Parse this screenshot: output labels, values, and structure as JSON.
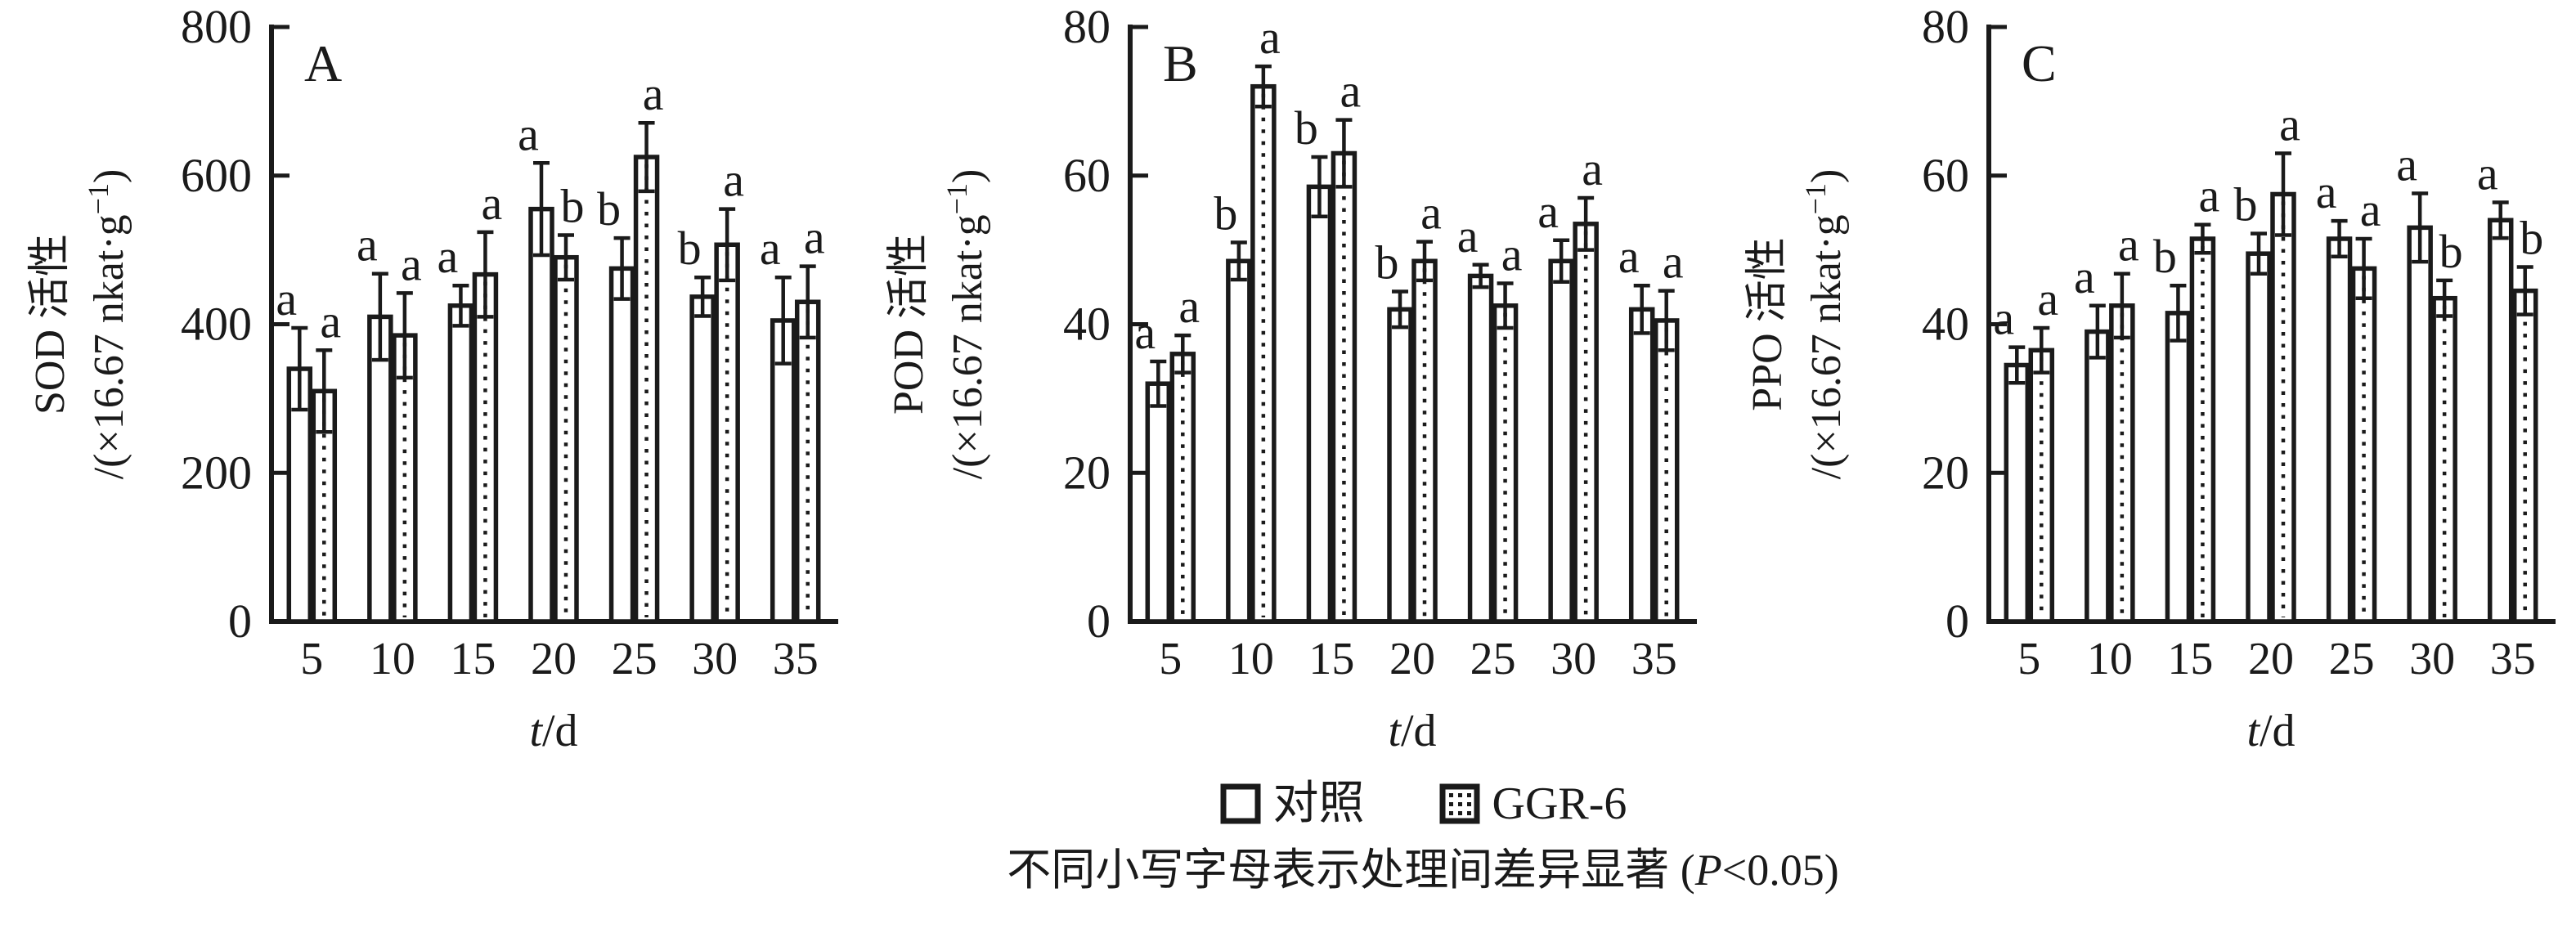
{
  "colors": {
    "ink": "#1a1a1a",
    "background": "#ffffff"
  },
  "legend": {
    "items": [
      {
        "label": "对照",
        "swatch": "open"
      },
      {
        "label": "GGR-6",
        "swatch": "dotted"
      }
    ]
  },
  "caption": {
    "prefix": "不同小写字母表示处理间差异显著 (",
    "italic_p": "P",
    "suffix": "<0.05)"
  },
  "chart_data": [
    {
      "type": "bar",
      "panel_label": "A",
      "ylabel_line1": "SOD 活性",
      "ylabel_unit_pre": "/(×16.67 nkat·g",
      "ylabel_unit_sup": "−1",
      "ylabel_unit_post": ")",
      "xlabel_var": "t",
      "xlabel_unit": "/d",
      "ylim": [
        0,
        800
      ],
      "yticks": [
        0,
        200,
        400,
        600,
        800
      ],
      "categories": [
        "5",
        "10",
        "15",
        "20",
        "25",
        "30",
        "35"
      ],
      "grid": false,
      "legend_position": "bottom",
      "series": [
        {
          "name": "对照",
          "fill": "open",
          "values": [
            340,
            410,
            425,
            555,
            475,
            437,
            405
          ],
          "errors": [
            55,
            58,
            27,
            62,
            41,
            26,
            58
          ],
          "letters": [
            "a",
            "a",
            "a",
            "a",
            "b",
            "b",
            "a"
          ]
        },
        {
          "name": "GGR-6",
          "fill": "dotted",
          "values": [
            310,
            385,
            467,
            490,
            625,
            507,
            430
          ],
          "errors": [
            55,
            57,
            57,
            30,
            46,
            48,
            48
          ],
          "letters": [
            "a",
            "a",
            "a",
            "b",
            "a",
            "a",
            "a"
          ]
        }
      ]
    },
    {
      "type": "bar",
      "panel_label": "B",
      "ylabel_line1": "POD 活性",
      "ylabel_unit_pre": "/(×16.67 nkat·g",
      "ylabel_unit_sup": "−1",
      "ylabel_unit_post": ")",
      "xlabel_var": "t",
      "xlabel_unit": "/d",
      "ylim": [
        0,
        80
      ],
      "yticks": [
        0,
        20,
        40,
        60,
        80
      ],
      "categories": [
        "5",
        "10",
        "15",
        "20",
        "25",
        "30",
        "35"
      ],
      "grid": false,
      "legend_position": "bottom",
      "series": [
        {
          "name": "对照",
          "fill": "open",
          "values": [
            32,
            48.5,
            58.5,
            42,
            46.5,
            48.5,
            42
          ],
          "errors": [
            3,
            2.5,
            4,
            2.4,
            1.5,
            2.8,
            3.2
          ],
          "letters": [
            "a",
            "b",
            "b",
            "b",
            "a",
            "a",
            "a"
          ]
        },
        {
          "name": "GGR-6",
          "fill": "dotted",
          "values": [
            36,
            72,
            63,
            48.5,
            42.5,
            53.5,
            40.5
          ],
          "errors": [
            2.5,
            2.7,
            4.5,
            2.6,
            3,
            3.5,
            4
          ],
          "letters": [
            "a",
            "a",
            "a",
            "a",
            "a",
            "a",
            "a"
          ]
        }
      ]
    },
    {
      "type": "bar",
      "panel_label": "C",
      "ylabel_line1": "PPO 活性",
      "ylabel_unit_pre": "/(×16.67 nkat·g",
      "ylabel_unit_sup": "−1",
      "ylabel_unit_post": ")",
      "xlabel_var": "t",
      "xlabel_unit": "/d",
      "ylim": [
        0,
        80
      ],
      "yticks": [
        0,
        20,
        40,
        60,
        80
      ],
      "categories": [
        "5",
        "10",
        "15",
        "20",
        "25",
        "30",
        "35"
      ],
      "grid": false,
      "legend_position": "bottom",
      "series": [
        {
          "name": "对照",
          "fill": "open",
          "values": [
            34.5,
            39,
            41.5,
            49.5,
            51.5,
            53,
            54
          ],
          "errors": [
            2.4,
            3.5,
            3.7,
            2.7,
            2.4,
            4.6,
            2.4
          ],
          "letters": [
            "a",
            "a",
            "b",
            "b",
            "a",
            "a",
            "a"
          ]
        },
        {
          "name": "GGR-6",
          "fill": "dotted",
          "values": [
            36.5,
            42.5,
            51.5,
            57.5,
            47.5,
            43.5,
            44.5
          ],
          "errors": [
            3,
            4.3,
            1.9,
            5.5,
            4,
            2.4,
            3.2
          ],
          "letters": [
            "a",
            "a",
            "a",
            "a",
            "a",
            "b",
            "b"
          ]
        }
      ]
    }
  ]
}
